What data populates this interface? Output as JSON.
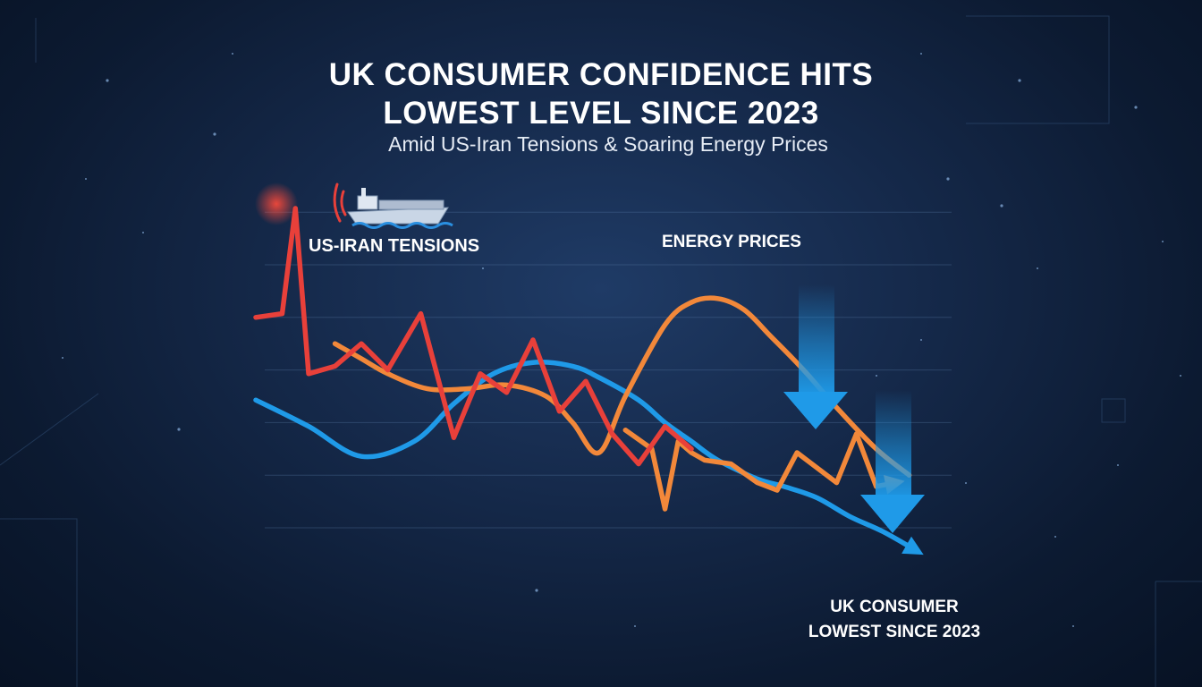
{
  "header": {
    "title_line1": "UK CONSUMER CONFIDENCE HITS",
    "title_line2": "LOWEST LEVEL SINCE 2023",
    "subtitle": "Amid US-Iran Tensions & Soaring Energy Prices"
  },
  "labels": {
    "iran": "US-IRAN TENSIONS",
    "energy": "ENERGY PRICES",
    "consumer_line1": "UK CONSUMER",
    "consumer_line2": "LOWEST SINCE 2023"
  },
  "icons": [
    "ship-icon",
    "signal-waves-icon",
    "down-arrow-icon"
  ],
  "colors": {
    "background": "#0c1a31",
    "red_series": "#e8403a",
    "orange_series": "#f2883a",
    "blue_series": "#1f9ae8",
    "text": "#ffffff"
  },
  "chart_data": {
    "type": "line",
    "grid": true,
    "legend": "none",
    "ylim": [
      0,
      100
    ],
    "xlim": [
      0,
      100
    ],
    "series": [
      {
        "name": "US-IRAN TENSIONS",
        "color": "#e8403a",
        "x": [
          0,
          4,
          6,
          8,
          12,
          16,
          20,
          25,
          30,
          34,
          38,
          42,
          46,
          50,
          54,
          58,
          62,
          66
        ],
        "y": [
          66,
          67,
          95,
          51,
          53,
          59,
          52,
          67,
          34,
          51,
          46,
          60,
          41,
          49,
          35,
          27,
          37,
          31
        ]
      },
      {
        "name": "ENERGY PRICES",
        "color": "#f2883a",
        "x": [
          12,
          16,
          20,
          26,
          32,
          38,
          44,
          48,
          52,
          56,
          62,
          66,
          70,
          74,
          78,
          83,
          88,
          94,
          99
        ],
        "y": [
          59,
          55,
          51,
          47,
          47,
          48,
          45,
          38,
          30,
          45,
          64,
          70,
          71,
          68,
          61,
          52,
          42,
          31,
          24
        ]
      },
      {
        "name": "UK CONSUMER LOWEST SINCE 2023",
        "color": "#1f9ae8",
        "x": [
          0,
          8,
          16,
          24,
          30,
          36,
          42,
          48,
          52,
          58,
          62,
          66,
          70,
          76,
          80,
          85,
          90,
          95,
          100
        ],
        "y": [
          44,
          37,
          29,
          33,
          43,
          51,
          54,
          53,
          50,
          44,
          38,
          33,
          28,
          23,
          21,
          18,
          13,
          9,
          4
        ]
      },
      {
        "name": "",
        "color": "#f2883a",
        "x": [
          56,
          60,
          62,
          64,
          66,
          68,
          72,
          76,
          79,
          82,
          85,
          88,
          91,
          94,
          97
        ],
        "y": [
          36,
          31,
          15,
          33,
          30,
          28,
          27,
          22,
          20,
          30,
          26,
          22,
          35,
          21,
          22
        ]
      }
    ]
  }
}
